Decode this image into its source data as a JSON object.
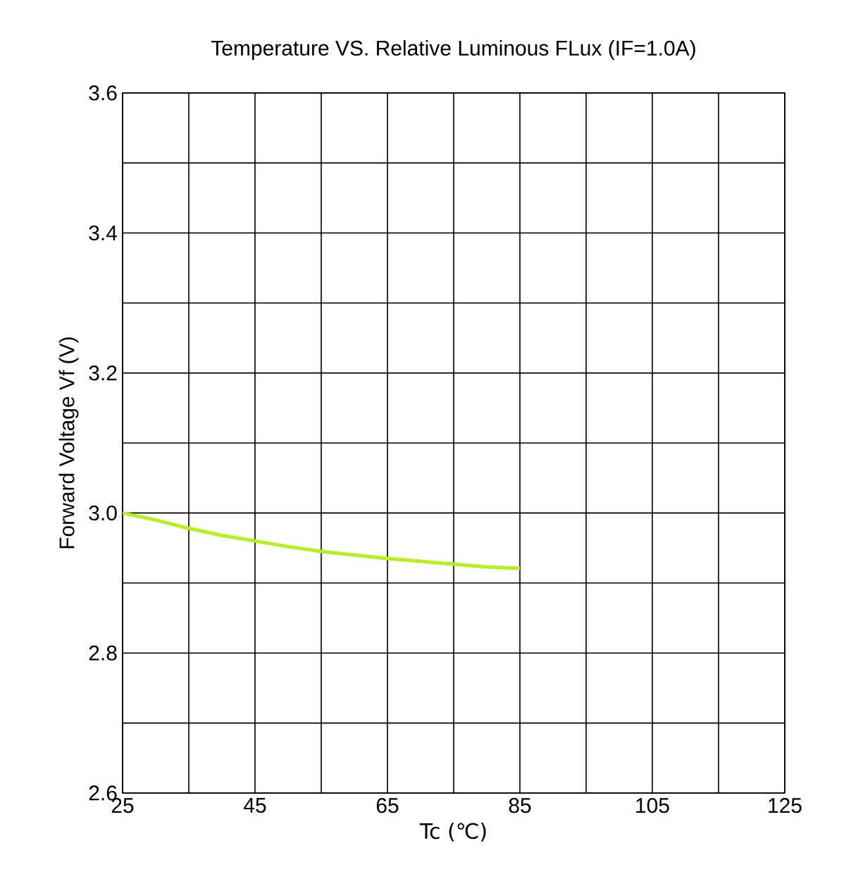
{
  "chart_data": {
    "type": "line",
    "title": "Temperature VS.  Relative Luminous FLux (IF=1.0A)",
    "xlabel": "Tc (℃)",
    "ylabel": "Forward  Voltage  Vf  (V)",
    "x": [
      25,
      30,
      35,
      40,
      45,
      50,
      55,
      60,
      65,
      70,
      75,
      80,
      85
    ],
    "series": [
      {
        "color": "#b8f01e",
        "values": [
          3.0,
          2.99,
          2.978,
          2.968,
          2.96,
          2.952,
          2.945,
          2.94,
          2.935,
          2.931,
          2.927,
          2.923,
          2.921
        ]
      }
    ],
    "xlim": [
      25,
      125
    ],
    "ylim": [
      2.6,
      3.6
    ],
    "xticks": [
      25,
      {
        "value": 35,
        "label": null
      },
      45,
      {
        "value": 55,
        "label": null
      },
      65,
      {
        "value": 75,
        "label": null
      },
      85,
      {
        "value": 95,
        "label": null
      },
      105,
      {
        "value": 115,
        "label": null
      },
      125
    ],
    "yticks": [
      2.6,
      {
        "value": 2.7,
        "label": null
      },
      2.8,
      {
        "value": 2.9,
        "label": null
      },
      {
        "value": 3.0,
        "label": "3.0"
      },
      {
        "value": 3.1,
        "label": null
      },
      3.2,
      {
        "value": 3.3,
        "label": null
      },
      3.4,
      {
        "value": 3.5,
        "label": null
      },
      3.6
    ],
    "grid": true,
    "marker": "none",
    "line_style": "solid"
  }
}
